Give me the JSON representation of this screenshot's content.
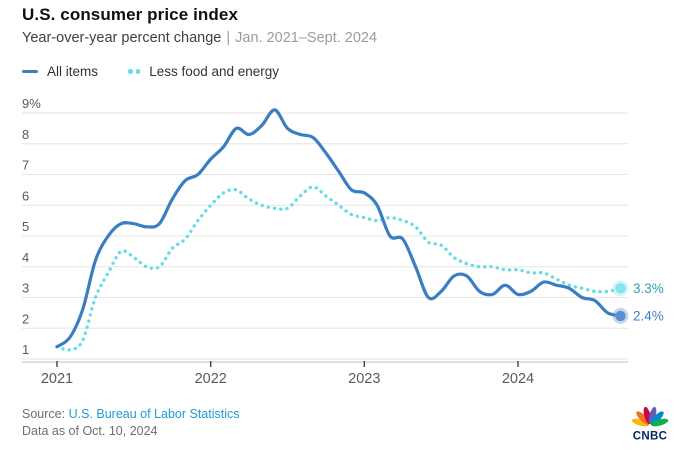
{
  "header": {
    "title": "U.S. consumer price index",
    "subtitle": "Year-over-year percent change",
    "separator": "|",
    "date_range": "Jan. 2021–Sept. 2024"
  },
  "chart_data": {
    "type": "line",
    "title": "U.S. consumer price index",
    "subtitle": "Year-over-year percent change",
    "x_range": "Jan. 2021–Sept. 2024",
    "frequency": "monthly",
    "grid": "horizontal",
    "ylim": [
      1,
      9
    ],
    "y_tick_labels": [
      "1",
      "2",
      "3",
      "4",
      "5",
      "6",
      "7",
      "8",
      "9%"
    ],
    "x_ticks": [
      {
        "label": "2021",
        "month_index": 0
      },
      {
        "label": "2022",
        "month_index": 12
      },
      {
        "label": "2023",
        "month_index": 24
      },
      {
        "label": "2024",
        "month_index": 36
      }
    ],
    "series": [
      {
        "name": "All items",
        "slug": "all-items",
        "style": "solid",
        "color": "#3B7DC3",
        "dot_color": "#5B90CC",
        "end_label": "2.4%",
        "end_label_color": "#3E7FC7",
        "values": [
          1.4,
          1.7,
          2.6,
          4.2,
          5.0,
          5.4,
          5.4,
          5.3,
          5.4,
          6.2,
          6.8,
          7.0,
          7.5,
          7.9,
          8.5,
          8.3,
          8.6,
          9.1,
          8.5,
          8.3,
          8.2,
          7.7,
          7.1,
          6.5,
          6.4,
          6.0,
          5.0,
          4.9,
          4.0,
          3.0,
          3.2,
          3.7,
          3.7,
          3.2,
          3.1,
          3.4,
          3.1,
          3.2,
          3.5,
          3.4,
          3.3,
          3.0,
          2.9,
          2.5,
          2.4
        ]
      },
      {
        "name": "Less food and energy",
        "slug": "less-food-and-energy",
        "style": "dotted",
        "color": "#66DCE8",
        "dot_color": "#84E3ED",
        "end_label": "3.3%",
        "end_label_color": "#29A3B2",
        "values": [
          1.4,
          1.3,
          1.6,
          3.0,
          3.8,
          4.5,
          4.3,
          4.0,
          4.0,
          4.6,
          4.9,
          5.5,
          6.0,
          6.4,
          6.5,
          6.2,
          6.0,
          5.9,
          5.9,
          6.3,
          6.6,
          6.3,
          6.0,
          5.7,
          5.6,
          5.5,
          5.6,
          5.5,
          5.3,
          4.8,
          4.7,
          4.3,
          4.1,
          4.0,
          4.0,
          3.9,
          3.9,
          3.8,
          3.8,
          3.6,
          3.4,
          3.3,
          3.2,
          3.2,
          3.3
        ]
      }
    ]
  },
  "theme": {
    "grid": "#E5E5E5",
    "axis": "#C9C9C9",
    "tick_mark": "#444444",
    "axis_text": "#5A5A5A",
    "link": "#209BD8"
  },
  "footer": {
    "source_label": "Source:",
    "source_link": "U.S. Bureau of Labor Statistics",
    "data_as_of": "Data as of Oct. 10, 2024"
  },
  "logo": {
    "text": "CNBC",
    "wordmark_color": "#0B2265",
    "feather_colors": [
      "#FCB711",
      "#F37021",
      "#CC004C",
      "#6460AA",
      "#0089D0",
      "#0DB14B"
    ]
  }
}
